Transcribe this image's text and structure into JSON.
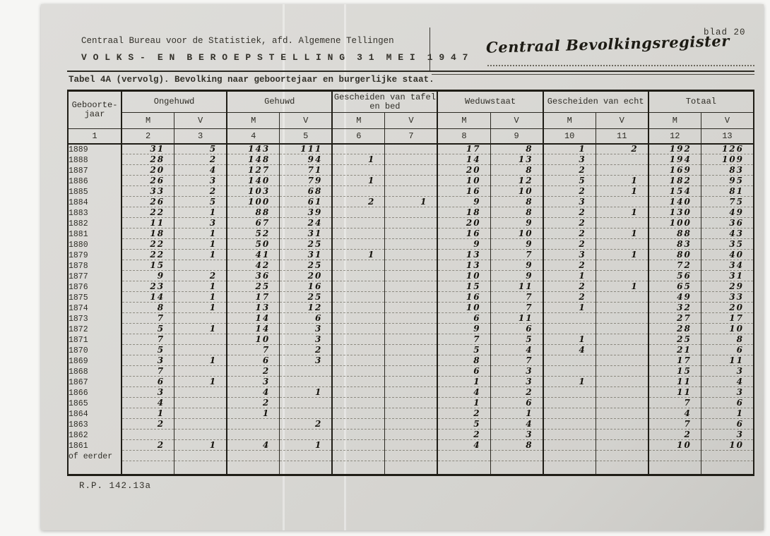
{
  "page": {
    "blad_label": "blad 20",
    "org_line": "Centraal Bureau voor de Statistiek, afd. Algemene Tellingen",
    "census_line": "V O L K S -  E N  B E R O E P S T E L L I N G  3 1  M E I  1 9 4 7",
    "register_handwritten": "Centraal Bevolkingsregister",
    "table_caption": "Tabel 4A (vervolg). Bevolking naar geboortejaar en burgerlijke staat.",
    "footer_code": "R.P. 142.13a"
  },
  "table": {
    "year_header_line1": "Geboorte-",
    "year_header_line2": "jaar",
    "groups": [
      {
        "label": "Ongehuwd",
        "cols": [
          "M",
          "V"
        ]
      },
      {
        "label": "Gehuwd",
        "cols": [
          "M",
          "V"
        ]
      },
      {
        "label": "Gescheiden van tafel en bed",
        "cols": [
          "M",
          "V"
        ]
      },
      {
        "label": "Weduwstaat",
        "cols": [
          "M",
          "V"
        ]
      },
      {
        "label": "Gescheiden van echt",
        "cols": [
          "M",
          "V"
        ]
      },
      {
        "label": "Totaal",
        "cols": [
          "M",
          "V"
        ]
      }
    ],
    "col_numbers": [
      "1",
      "2",
      "3",
      "4",
      "5",
      "6",
      "7",
      "8",
      "9",
      "10",
      "11",
      "12",
      "13"
    ],
    "rows": [
      {
        "year": "1889",
        "values": [
          "31",
          "5",
          "143",
          "111",
          "",
          "",
          "17",
          "8",
          "1",
          "2",
          "192",
          "126"
        ]
      },
      {
        "year": "1888",
        "values": [
          "28",
          "2",
          "148",
          "94",
          "1",
          "",
          "14",
          "13",
          "3",
          "",
          "194",
          "109"
        ]
      },
      {
        "year": "1887",
        "values": [
          "20",
          "4",
          "127",
          "71",
          "",
          "",
          "20",
          "8",
          "2",
          "",
          "169",
          "83"
        ]
      },
      {
        "year": "1886",
        "values": [
          "26",
          "3",
          "140",
          "79",
          "1",
          "",
          "10",
          "12",
          "5",
          "1",
          "182",
          "95"
        ]
      },
      {
        "year": "1885",
        "values": [
          "33",
          "2",
          "103",
          "68",
          "",
          "",
          "16",
          "10",
          "2",
          "1",
          "154",
          "81"
        ]
      },
      {
        "year": "1884",
        "values": [
          "26",
          "5",
          "100",
          "61",
          "2",
          "1",
          "9",
          "8",
          "3",
          "",
          "140",
          "75"
        ]
      },
      {
        "year": "1883",
        "values": [
          "22",
          "1",
          "88",
          "39",
          "",
          "",
          "18",
          "8",
          "2",
          "1",
          "130",
          "49"
        ]
      },
      {
        "year": "1882",
        "values": [
          "11",
          "3",
          "67",
          "24",
          "",
          "",
          "20",
          "9",
          "2",
          "",
          "100",
          "36"
        ]
      },
      {
        "year": "1881",
        "values": [
          "18",
          "1",
          "52",
          "31",
          "",
          "",
          "16",
          "10",
          "2",
          "1",
          "88",
          "43"
        ]
      },
      {
        "year": "1880",
        "values": [
          "22",
          "1",
          "50",
          "25",
          "",
          "",
          "9",
          "9",
          "2",
          "",
          "83",
          "35"
        ]
      },
      {
        "year": "1879",
        "values": [
          "22",
          "1",
          "41",
          "31",
          "1",
          "",
          "13",
          "7",
          "3",
          "1",
          "80",
          "40"
        ]
      },
      {
        "year": "1878",
        "values": [
          "15",
          "",
          "42",
          "25",
          "",
          "",
          "13",
          "9",
          "2",
          "",
          "72",
          "34"
        ]
      },
      {
        "year": "1877",
        "values": [
          "9",
          "2",
          "36",
          "20",
          "",
          "",
          "10",
          "9",
          "1",
          "",
          "56",
          "31"
        ]
      },
      {
        "year": "1876",
        "values": [
          "23",
          "1",
          "25",
          "16",
          "",
          "",
          "15",
          "11",
          "2",
          "1",
          "65",
          "29"
        ]
      },
      {
        "year": "1875",
        "values": [
          "14",
          "1",
          "17",
          "25",
          "",
          "",
          "16",
          "7",
          "2",
          "",
          "49",
          "33"
        ]
      },
      {
        "year": "1874",
        "values": [
          "8",
          "1",
          "13",
          "12",
          "",
          "",
          "10",
          "7",
          "1",
          "",
          "32",
          "20"
        ]
      },
      {
        "year": "1873",
        "values": [
          "7",
          "",
          "14",
          "6",
          "",
          "",
          "6",
          "11",
          "",
          "",
          "27",
          "17"
        ]
      },
      {
        "year": "1872",
        "values": [
          "5",
          "1",
          "14",
          "3",
          "",
          "",
          "9",
          "6",
          "",
          "",
          "28",
          "10"
        ]
      },
      {
        "year": "1871",
        "values": [
          "7",
          "",
          "10",
          "3",
          "",
          "",
          "7",
          "5",
          "1",
          "",
          "25",
          "8"
        ]
      },
      {
        "year": "1870",
        "values": [
          "5",
          "",
          "7",
          "2",
          "",
          "",
          "5",
          "4",
          "4",
          "",
          "21",
          "6"
        ]
      },
      {
        "year": "1869",
        "values": [
          "3",
          "1",
          "6",
          "3",
          "",
          "",
          "8",
          "7",
          "",
          "",
          "17",
          "11"
        ]
      },
      {
        "year": "1868",
        "values": [
          "7",
          "",
          "2",
          "",
          "",
          "",
          "6",
          "3",
          "",
          "",
          "15",
          "3"
        ]
      },
      {
        "year": "1867",
        "values": [
          "6",
          "1",
          "3",
          "",
          "",
          "",
          "1",
          "3",
          "1",
          "",
          "11",
          "4"
        ]
      },
      {
        "year": "1866",
        "values": [
          "3",
          "",
          "4",
          "1",
          "",
          "",
          "4",
          "2",
          "",
          "",
          "11",
          "3"
        ]
      },
      {
        "year": "1865",
        "values": [
          "4",
          "",
          "2",
          "",
          "",
          "",
          "1",
          "6",
          "",
          "",
          "7",
          "6"
        ]
      },
      {
        "year": "1864",
        "values": [
          "1",
          "",
          "1",
          "",
          "",
          "",
          "2",
          "1",
          "",
          "",
          "4",
          "1"
        ]
      },
      {
        "year": "1863",
        "values": [
          "2",
          "",
          "",
          "2",
          "",
          "",
          "5",
          "4",
          "",
          "",
          "7",
          "6"
        ]
      },
      {
        "year": "1862",
        "values": [
          "",
          "",
          "",
          "",
          "",
          "",
          "2",
          "3",
          "",
          "",
          "2",
          "3"
        ]
      },
      {
        "year": "1861",
        "values": [
          "2",
          "1",
          "4",
          "1",
          "",
          "",
          "4",
          "8",
          "",
          "",
          "10",
          "10"
        ]
      },
      {
        "year": "of eerder",
        "values": [
          "",
          "",
          "",
          "",
          "",
          "",
          "",
          "",
          "",
          "",
          "",
          ""
        ]
      },
      {
        "year": "",
        "blank": true,
        "values": [
          "",
          "",
          "",
          "",
          "",
          "",
          "",
          "",
          "",
          "",
          "",
          ""
        ]
      }
    ]
  },
  "colors": {
    "paper": "#d9d8d4",
    "ink": "#16140e",
    "line": "#2b2922"
  }
}
